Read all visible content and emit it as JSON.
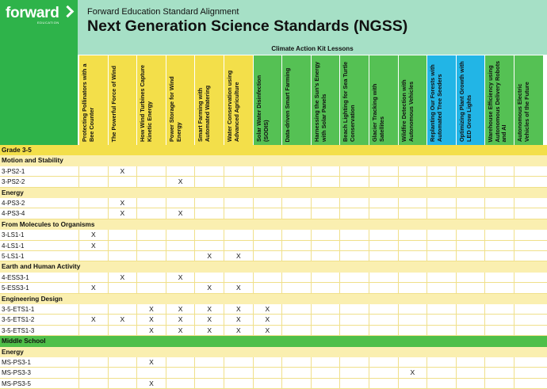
{
  "brand": {
    "name": "forward",
    "tagline": "EDUCATION"
  },
  "header": {
    "subtitle": "Forward Education Standard Alignment",
    "title": "Next Generation Science Standards (NGSS)",
    "kit_label": "Climate Action Kit Lessons"
  },
  "colors": {
    "brand_green": "#2eb34a",
    "header_mint": "#a6e0c6",
    "yellow": "#f3df4a",
    "green": "#55c154",
    "blue": "#22b5e6"
  },
  "lessons": [
    {
      "label": "Protecting Pollinators with a Bee Counter",
      "color": "#f3df4a"
    },
    {
      "label": "The Powerful Force of Wind",
      "color": "#f3df4a"
    },
    {
      "label": "How Wind Turbines Capture Kinetic Energy",
      "color": "#f3df4a"
    },
    {
      "label": "Power Storage for Wind Energy",
      "color": "#f3df4a"
    },
    {
      "label": "Smart Farming with Automated Watering",
      "color": "#f3df4a"
    },
    {
      "label": "Water Conservation using Advanced Agriculture",
      "color": "#f3df4a"
    },
    {
      "label": "Solar Water Disinfection (SODIS)",
      "color": "#55c154"
    },
    {
      "label": "Data-driven Smart Farming",
      "color": "#55c154"
    },
    {
      "label": "Harnessing the Sun's Energy with Solar Panels",
      "color": "#55c154"
    },
    {
      "label": "Beach Lighting for Sea Turtle Conservation",
      "color": "#55c154"
    },
    {
      "label": "Glacier Tracking with Satellites",
      "color": "#55c154"
    },
    {
      "label": "Wildfire Detection with Autonomous Vehicles",
      "color": "#55c154"
    },
    {
      "label": "Replanting Our Forests with Automated Tree Seeders",
      "color": "#22b5e6"
    },
    {
      "label": "Optimizing Plant Growth with LED Grow Lights",
      "color": "#22b5e6"
    },
    {
      "label": "Warehouse Efficiency using Autonomous Delivery Robots and AI",
      "color": "#55c154"
    },
    {
      "label": "Autonomous Electric Vehicles of the Future",
      "color": "#55c154"
    }
  ],
  "rows": [
    {
      "type": "band",
      "style": "yellow",
      "label": "Grade 3-5"
    },
    {
      "type": "band",
      "style": "light",
      "label": "Motion and Stability"
    },
    {
      "type": "data",
      "code": "3-PS2-1",
      "marks": [
        1
      ]
    },
    {
      "type": "data",
      "code": "3-PS2-2",
      "marks": [
        3
      ]
    },
    {
      "type": "band",
      "style": "light",
      "label": "Energy"
    },
    {
      "type": "data",
      "code": "4-PS3-2",
      "marks": [
        1
      ]
    },
    {
      "type": "data",
      "code": "4-PS3-4",
      "marks": [
        1,
        3
      ]
    },
    {
      "type": "band",
      "style": "light",
      "label": "From Molecules to Organisms"
    },
    {
      "type": "data",
      "code": "3-LS1-1",
      "marks": [
        0
      ]
    },
    {
      "type": "data",
      "code": "4-LS1-1",
      "marks": [
        0
      ]
    },
    {
      "type": "data",
      "code": "5-LS1-1",
      "marks": [
        4,
        5
      ]
    },
    {
      "type": "band",
      "style": "light",
      "label": "Earth and Human Activity"
    },
    {
      "type": "data",
      "code": "4-ESS3-1",
      "marks": [
        1,
        3
      ]
    },
    {
      "type": "data",
      "code": "5-ESS3-1",
      "marks": [
        0,
        4,
        5
      ]
    },
    {
      "type": "band",
      "style": "light",
      "label": "Engineering Design"
    },
    {
      "type": "data",
      "code": "3-5-ETS1-1",
      "marks": [
        2,
        3,
        4,
        5,
        6
      ]
    },
    {
      "type": "data",
      "code": "3-5-ETS1-2",
      "marks": [
        0,
        1,
        2,
        3,
        4,
        5,
        6
      ]
    },
    {
      "type": "data",
      "code": "3-5-ETS1-3",
      "marks": [
        2,
        3,
        4,
        5,
        6
      ]
    },
    {
      "type": "band",
      "style": "green",
      "label": "Middle School"
    },
    {
      "type": "band",
      "style": "light",
      "label": "Energy"
    },
    {
      "type": "data",
      "code": "MS-PS3-1",
      "marks": [
        2
      ]
    },
    {
      "type": "data",
      "code": "MS-PS3-3",
      "marks": [
        11
      ]
    },
    {
      "type": "data",
      "code": "MS-PS3-5",
      "marks": [
        2
      ]
    }
  ],
  "mark": "X"
}
